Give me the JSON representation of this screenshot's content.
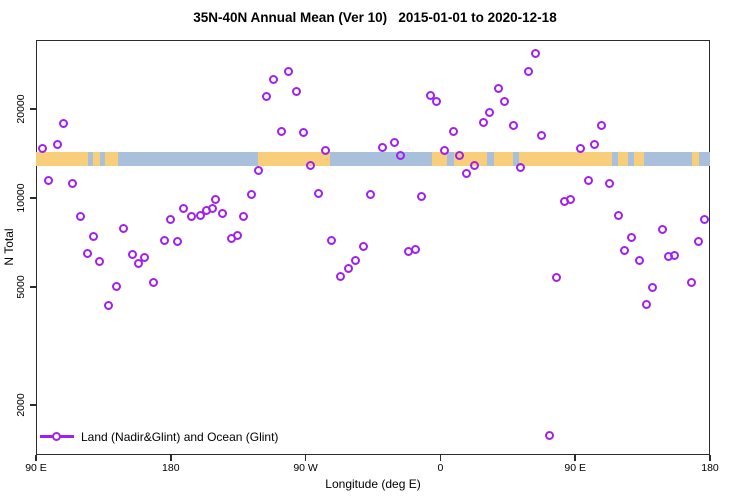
{
  "figure": {
    "title": "35N-40N Annual Mean (Ver 10)   2015-01-01 to 2020-12-18",
    "xlabel": "Longitude (deg E)",
    "ylabel": "N Total",
    "legend": {
      "label": "Land (Nadir&Glint) and Ocean (Glint)",
      "marker": "open-circle-on-line"
    },
    "colors": {
      "points": "#A020F0",
      "land_band": "#F8CE7B",
      "ocean_band": "#A9C0DC",
      "axis": "#2b2b2b",
      "background": "#ffffff"
    }
  },
  "chart_data": {
    "type": "scatter",
    "title": "35N-40N Annual Mean (Ver 10)   2015-01-01 to 2020-12-18",
    "xlabel": "Longitude (deg E)",
    "ylabel": "N Total",
    "x_axis": {
      "description": "longitude axis starting at 90E and wrapping eastward 450 degrees",
      "range": [
        0,
        450
      ],
      "ticks": [
        {
          "deg": 0,
          "label": "90 E"
        },
        {
          "deg": 90,
          "label": "180"
        },
        {
          "deg": 180,
          "label": "90 W"
        },
        {
          "deg": 270,
          "label": "0"
        },
        {
          "deg": 360,
          "label": "90 E"
        },
        {
          "deg": 450,
          "label": "180"
        }
      ],
      "grid": false
    },
    "y_axis": {
      "scale": "log10",
      "range_approx": [
        1400,
        34000
      ],
      "ticks": [
        {
          "value": 20000,
          "label": "20000"
        },
        {
          "value": 10000,
          "label": "10000"
        },
        {
          "value": 5000,
          "label": "5000"
        },
        {
          "value": 2000,
          "label": "2000"
        }
      ],
      "grid": false
    },
    "map_band": {
      "description": "land/ocean strip along 35N-40N drawn across the plot",
      "n_range_approx": [
        12800,
        14300
      ],
      "segments": [
        {
          "type": "land",
          "from_deg": 0,
          "to_deg": 34.7
        },
        {
          "type": "ocean",
          "from_deg": 34.7,
          "to_deg": 38.0
        },
        {
          "type": "land",
          "from_deg": 38.0,
          "to_deg": 42.7
        },
        {
          "type": "ocean",
          "from_deg": 42.7,
          "to_deg": 46.0
        },
        {
          "type": "land",
          "from_deg": 46.0,
          "to_deg": 54.8
        },
        {
          "type": "ocean",
          "from_deg": 54.8,
          "to_deg": 148.2
        },
        {
          "type": "land",
          "from_deg": 148.2,
          "to_deg": 196.3
        },
        {
          "type": "ocean",
          "from_deg": 196.3,
          "to_deg": 264.4
        },
        {
          "type": "land",
          "from_deg": 264.4,
          "to_deg": 274.4
        },
        {
          "type": "ocean",
          "from_deg": 274.4,
          "to_deg": 279.1
        },
        {
          "type": "land",
          "from_deg": 279.1,
          "to_deg": 301.1
        },
        {
          "type": "ocean",
          "from_deg": 301.1,
          "to_deg": 305.8
        },
        {
          "type": "land",
          "from_deg": 305.8,
          "to_deg": 318.5
        },
        {
          "type": "ocean",
          "from_deg": 318.5,
          "to_deg": 322.5
        },
        {
          "type": "land",
          "from_deg": 322.5,
          "to_deg": 384.6
        },
        {
          "type": "ocean",
          "from_deg": 384.6,
          "to_deg": 388.6
        },
        {
          "type": "land",
          "from_deg": 388.6,
          "to_deg": 395.3
        },
        {
          "type": "ocean",
          "from_deg": 395.3,
          "to_deg": 399.3
        },
        {
          "type": "land",
          "from_deg": 399.3,
          "to_deg": 406.0
        },
        {
          "type": "ocean",
          "from_deg": 406.0,
          "to_deg": 438.0
        },
        {
          "type": "land",
          "from_deg": 438.0,
          "to_deg": 442.7
        },
        {
          "type": "ocean",
          "from_deg": 442.7,
          "to_deg": 450.0
        }
      ]
    },
    "series": [
      {
        "name": "Land (Nadir&Glint) and Ocean (Glint)",
        "marker": "open-circle",
        "color": "#A020F0",
        "points": [
          {
            "deg": 19,
            "n": 17800
          },
          {
            "deg": 5,
            "n": 14600
          },
          {
            "deg": 15,
            "n": 15100
          },
          {
            "deg": 9,
            "n": 11400
          },
          {
            "deg": 25,
            "n": 11100
          },
          {
            "deg": 30,
            "n": 8630
          },
          {
            "deg": 39,
            "n": 7380
          },
          {
            "deg": 35,
            "n": 6470
          },
          {
            "deg": 43,
            "n": 6080
          },
          {
            "deg": 59,
            "n": 7860
          },
          {
            "deg": 65,
            "n": 6420
          },
          {
            "deg": 69,
            "n": 5980
          },
          {
            "deg": 73,
            "n": 6270
          },
          {
            "deg": 54,
            "n": 5000
          },
          {
            "deg": 79,
            "n": 5160
          },
          {
            "deg": 49,
            "n": 4320
          },
          {
            "deg": 90,
            "n": 8430
          },
          {
            "deg": 86,
            "n": 7150
          },
          {
            "deg": 95,
            "n": 7100
          },
          {
            "deg": 99,
            "n": 9180
          },
          {
            "deg": 104,
            "n": 8630
          },
          {
            "deg": 110,
            "n": 8690
          },
          {
            "deg": 114,
            "n": 9040
          },
          {
            "deg": 118,
            "n": 9180
          },
          {
            "deg": 120,
            "n": 9850
          },
          {
            "deg": 125,
            "n": 8830
          },
          {
            "deg": 139,
            "n": 8630
          },
          {
            "deg": 144,
            "n": 10200
          },
          {
            "deg": 135,
            "n": 7440
          },
          {
            "deg": 131,
            "n": 7270
          },
          {
            "deg": 169,
            "n": 26600
          },
          {
            "deg": 159,
            "n": 25000
          },
          {
            "deg": 154,
            "n": 21900
          },
          {
            "deg": 174,
            "n": 22800
          },
          {
            "deg": 164,
            "n": 16700
          },
          {
            "deg": 179,
            "n": 16600
          },
          {
            "deg": 194,
            "n": 14400
          },
          {
            "deg": 149,
            "n": 12300
          },
          {
            "deg": 184,
            "n": 12800
          },
          {
            "deg": 189,
            "n": 10300
          },
          {
            "deg": 224,
            "n": 10200
          },
          {
            "deg": 198,
            "n": 7150
          },
          {
            "deg": 219,
            "n": 6830
          },
          {
            "deg": 214,
            "n": 6130
          },
          {
            "deg": 209,
            "n": 5760
          },
          {
            "deg": 204,
            "n": 5410
          },
          {
            "deg": 232,
            "n": 14800
          },
          {
            "deg": 240,
            "n": 15300
          },
          {
            "deg": 334,
            "n": 30700
          },
          {
            "deg": 329,
            "n": 26600
          },
          {
            "deg": 309,
            "n": 23300
          },
          {
            "deg": 264,
            "n": 22100
          },
          {
            "deg": 268,
            "n": 21100
          },
          {
            "deg": 313,
            "n": 21100
          },
          {
            "deg": 303,
            "n": 19400
          },
          {
            "deg": 299,
            "n": 17900
          },
          {
            "deg": 319,
            "n": 17500
          },
          {
            "deg": 279,
            "n": 16700
          },
          {
            "deg": 338,
            "n": 16200
          },
          {
            "deg": 244,
            "n": 13900
          },
          {
            "deg": 273,
            "n": 14400
          },
          {
            "deg": 283,
            "n": 13800
          },
          {
            "deg": 293,
            "n": 12800
          },
          {
            "deg": 288,
            "n": 12000
          },
          {
            "deg": 324,
            "n": 12600
          },
          {
            "deg": 258,
            "n": 10100
          },
          {
            "deg": 353,
            "n": 9690
          },
          {
            "deg": 357,
            "n": 9850
          },
          {
            "deg": 249,
            "n": 6570
          },
          {
            "deg": 254,
            "n": 6670
          },
          {
            "deg": 348,
            "n": 5370
          },
          {
            "deg": 343,
            "n": 1570
          },
          {
            "deg": 378,
            "n": 17500
          },
          {
            "deg": 373,
            "n": 15100
          },
          {
            "deg": 364,
            "n": 14600
          },
          {
            "deg": 369,
            "n": 11400
          },
          {
            "deg": 383,
            "n": 11100
          },
          {
            "deg": 389,
            "n": 8690
          },
          {
            "deg": 419,
            "n": 7800
          },
          {
            "deg": 398,
            "n": 7330
          },
          {
            "deg": 393,
            "n": 6620
          },
          {
            "deg": 403,
            "n": 6130
          },
          {
            "deg": 423,
            "n": 6320
          },
          {
            "deg": 427,
            "n": 6370
          },
          {
            "deg": 443,
            "n": 7100
          },
          {
            "deg": 447,
            "n": 8430
          },
          {
            "deg": 438,
            "n": 5160
          },
          {
            "deg": 412,
            "n": 4970
          },
          {
            "deg": 408,
            "n": 4350
          }
        ]
      }
    ],
    "legend_position": "bottom-left-inside"
  }
}
